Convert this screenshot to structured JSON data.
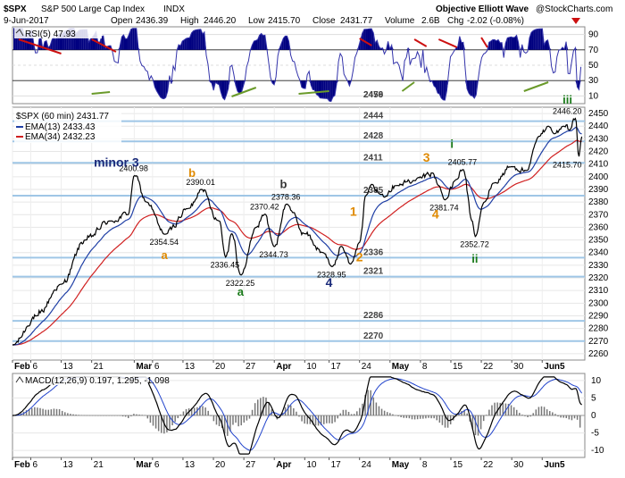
{
  "header": {
    "title": "$SPX",
    "subtitle": "S&P 500 Large Cap Index",
    "exchange": "INDX",
    "date": "9-Jun-2017",
    "open_label": "Open",
    "open": "2436.39",
    "high_label": "High",
    "high": "2446.20",
    "low_label": "Low",
    "low": "2415.70",
    "close_label": "Close",
    "close": "2431.77",
    "volume_label": "Volume",
    "volume": "2.6B",
    "chg_label": "Chg",
    "chg": "-2.02 (-0.08%)",
    "source": "Objective Elliott Wave",
    "watermark": "@StockCharts.com"
  },
  "colors": {
    "rsi_line": "#3333aa",
    "rsi_fill": "#000080",
    "price": "#000000",
    "ema13": "#1f3fa5",
    "ema34": "#d02020",
    "level_line": "#9fc6e6",
    "macd_line": "#000000",
    "signal_line": "#2244cc",
    "hist": "#777777",
    "wave_orange": "#e08a00",
    "wave_green": "#1a7a1a",
    "wave_navy": "#1a2a7a",
    "divergence_red": "#cc1010",
    "divergence_green": "#6a9a2a"
  },
  "chart_data": [
    {
      "type": "line",
      "panel": "RSI",
      "legend": "RSI(5) 47.93",
      "ylim": [
        0,
        100
      ],
      "yticks": [
        10,
        30,
        50,
        70,
        90
      ],
      "last_value": 47.93
    },
    {
      "type": "line",
      "panel": "Price",
      "legend_price": "$SPX (60 min) 2431.77",
      "legend_ema13": "EMA(13) 2433.43",
      "legend_ema34": "EMA(34) 2432.23",
      "ylim": [
        2255,
        2455
      ],
      "yticks": [
        2260,
        2270,
        2280,
        2290,
        2300,
        2310,
        2320,
        2330,
        2340,
        2350,
        2360,
        2370,
        2380,
        2390,
        2400,
        2410,
        2420,
        2430,
        2440,
        2450
      ],
      "xlabels": [
        {
          "label": "Feb",
          "t": 0
        },
        {
          "label": "6",
          "t": 3
        },
        {
          "label": "13",
          "t": 8
        },
        {
          "label": "21",
          "t": 13
        },
        {
          "label": "Mar",
          "t": 20
        },
        {
          "label": "6",
          "t": 23
        },
        {
          "label": "13",
          "t": 28
        },
        {
          "label": "20",
          "t": 33
        },
        {
          "label": "27",
          "t": 38
        },
        {
          "label": "Apr",
          "t": 43
        },
        {
          "label": "10",
          "t": 48
        },
        {
          "label": "17",
          "t": 52
        },
        {
          "label": "24",
          "t": 57
        },
        {
          "label": "May",
          "t": 62
        },
        {
          "label": "8",
          "t": 67
        },
        {
          "label": "15",
          "t": 72
        },
        {
          "label": "22",
          "t": 77
        },
        {
          "label": "30",
          "t": 82
        },
        {
          "label": "Jun5",
          "t": 87
        }
      ],
      "levels": [
        2479,
        2456,
        2444,
        2428,
        2411,
        2385,
        2336,
        2321,
        2286,
        2270
      ],
      "pivots": [
        {
          "t": 0,
          "v": 2267
        },
        {
          "t": 4,
          "v": 2290
        },
        {
          "t": 8,
          "v": 2315
        },
        {
          "t": 12,
          "v": 2350
        },
        {
          "t": 16,
          "v": 2365
        },
        {
          "t": 19,
          "v": 2370
        },
        {
          "t": 20,
          "v": 2400.98
        },
        {
          "t": 22,
          "v": 2380
        },
        {
          "t": 25,
          "v": 2354.54
        },
        {
          "t": 29,
          "v": 2375
        },
        {
          "t": 31,
          "v": 2390.01
        },
        {
          "t": 34,
          "v": 2365
        },
        {
          "t": 35,
          "v": 2336.45
        },
        {
          "t": 36,
          "v": 2355
        },
        {
          "t": 37.5,
          "v": 2322.25
        },
        {
          "t": 40,
          "v": 2360
        },
        {
          "t": 41.5,
          "v": 2370.42
        },
        {
          "t": 43,
          "v": 2344.73
        },
        {
          "t": 45,
          "v": 2378.36
        },
        {
          "t": 48,
          "v": 2355
        },
        {
          "t": 51,
          "v": 2340
        },
        {
          "t": 52.5,
          "v": 2328.95
        },
        {
          "t": 54,
          "v": 2345
        },
        {
          "t": 55.5,
          "v": 2331
        },
        {
          "t": 57,
          "v": 2348
        },
        {
          "t": 58,
          "v": 2385
        },
        {
          "t": 59,
          "v": 2394
        },
        {
          "t": 60.5,
          "v": 2386
        },
        {
          "t": 63,
          "v": 2393
        },
        {
          "t": 66,
          "v": 2397
        },
        {
          "t": 69,
          "v": 2403
        },
        {
          "t": 70,
          "v": 2393
        },
        {
          "t": 71,
          "v": 2381.74
        },
        {
          "t": 73,
          "v": 2398
        },
        {
          "t": 74,
          "v": 2405.77
        },
        {
          "t": 75.5,
          "v": 2365
        },
        {
          "t": 76,
          "v": 2352.72
        },
        {
          "t": 77.5,
          "v": 2380
        },
        {
          "t": 79,
          "v": 2395
        },
        {
          "t": 82,
          "v": 2408
        },
        {
          "t": 84.5,
          "v": 2405
        },
        {
          "t": 86.5,
          "v": 2432
        },
        {
          "t": 88,
          "v": 2440
        },
        {
          "t": 89,
          "v": 2434
        },
        {
          "t": 90.5,
          "v": 2440
        },
        {
          "t": 91.5,
          "v": 2437
        },
        {
          "t": 92.5,
          "v": 2446.2
        },
        {
          "t": 93,
          "v": 2415.7
        },
        {
          "t": 93.5,
          "v": 2431.77
        }
      ],
      "price_labels": [
        {
          "text": "2400.98",
          "t": 20,
          "v": 2400.98,
          "pos": "above"
        },
        {
          "text": "2390.01",
          "t": 31,
          "v": 2390.01,
          "pos": "above"
        },
        {
          "text": "2378.36",
          "t": 45,
          "v": 2378.36,
          "pos": "above"
        },
        {
          "text": "2370.42",
          "t": 41.5,
          "v": 2370.42,
          "pos": "above"
        },
        {
          "text": "2354.54",
          "t": 25,
          "v": 2354.54,
          "pos": "below"
        },
        {
          "text": "2336.45",
          "t": 35,
          "v": 2336.45,
          "pos": "below"
        },
        {
          "text": "2344.73",
          "t": 43,
          "v": 2344.73,
          "pos": "below"
        },
        {
          "text": "2322.25",
          "t": 37.5,
          "v": 2322.25,
          "pos": "below"
        },
        {
          "text": "2328.95",
          "t": 52.5,
          "v": 2328.95,
          "pos": "below"
        },
        {
          "text": "2405.77",
          "t": 74,
          "v": 2405.77,
          "pos": "above"
        },
        {
          "text": "2381.74",
          "t": 71,
          "v": 2381.74,
          "pos": "below"
        },
        {
          "text": "2352.72",
          "t": 76,
          "v": 2352.72,
          "pos": "below"
        },
        {
          "text": "2446.20",
          "t": 92.5,
          "v": 2446.2,
          "pos": "above"
        },
        {
          "text": "2415.70",
          "t": 93,
          "v": 2415.7,
          "pos": "below"
        }
      ],
      "wave_labels": [
        {
          "text": "minor 3",
          "t": 16,
          "v": 2408,
          "color": "#1a2a7a",
          "size": 14
        },
        {
          "text": "a",
          "t": 25,
          "v": 2335,
          "color": "#e08a00",
          "size": 13
        },
        {
          "text": "b",
          "t": 29.5,
          "v": 2400,
          "color": "#e08a00",
          "size": 13
        },
        {
          "text": "a",
          "t": 37.5,
          "v": 2306,
          "color": "#1a7a1a",
          "size": 13
        },
        {
          "text": "b",
          "t": 44.5,
          "v": 2391,
          "color": "#333333",
          "size": 13
        },
        {
          "text": "4",
          "t": 52,
          "v": 2313,
          "color": "#1a2a7a",
          "size": 14
        },
        {
          "text": "1",
          "t": 56,
          "v": 2369,
          "color": "#e08a00",
          "size": 14
        },
        {
          "text": "2",
          "t": 57,
          "v": 2333,
          "color": "#e08a00",
          "size": 14
        },
        {
          "text": "3",
          "t": 68,
          "v": 2412,
          "color": "#e08a00",
          "size": 14
        },
        {
          "text": "4",
          "t": 69.5,
          "v": 2367,
          "color": "#e08a00",
          "size": 14
        },
        {
          "text": "i",
          "t": 72.5,
          "v": 2423,
          "color": "#1a7a1a",
          "size": 13
        },
        {
          "text": "ii",
          "t": 76,
          "v": 2332,
          "color": "#1a7a1a",
          "size": 13
        },
        {
          "text": "iii",
          "t": 93,
          "v": 2458,
          "color": "#1a7a1a",
          "size": 13
        }
      ]
    },
    {
      "type": "line",
      "panel": "MACD",
      "legend": "MACD(12,26,9) 0.197, 1.295, -1.098",
      "ylim": [
        -12,
        12
      ],
      "yticks": [
        -10,
        -5,
        0,
        5,
        10
      ],
      "macd": 0.197,
      "signal": 1.295,
      "histogram": -1.098
    }
  ]
}
